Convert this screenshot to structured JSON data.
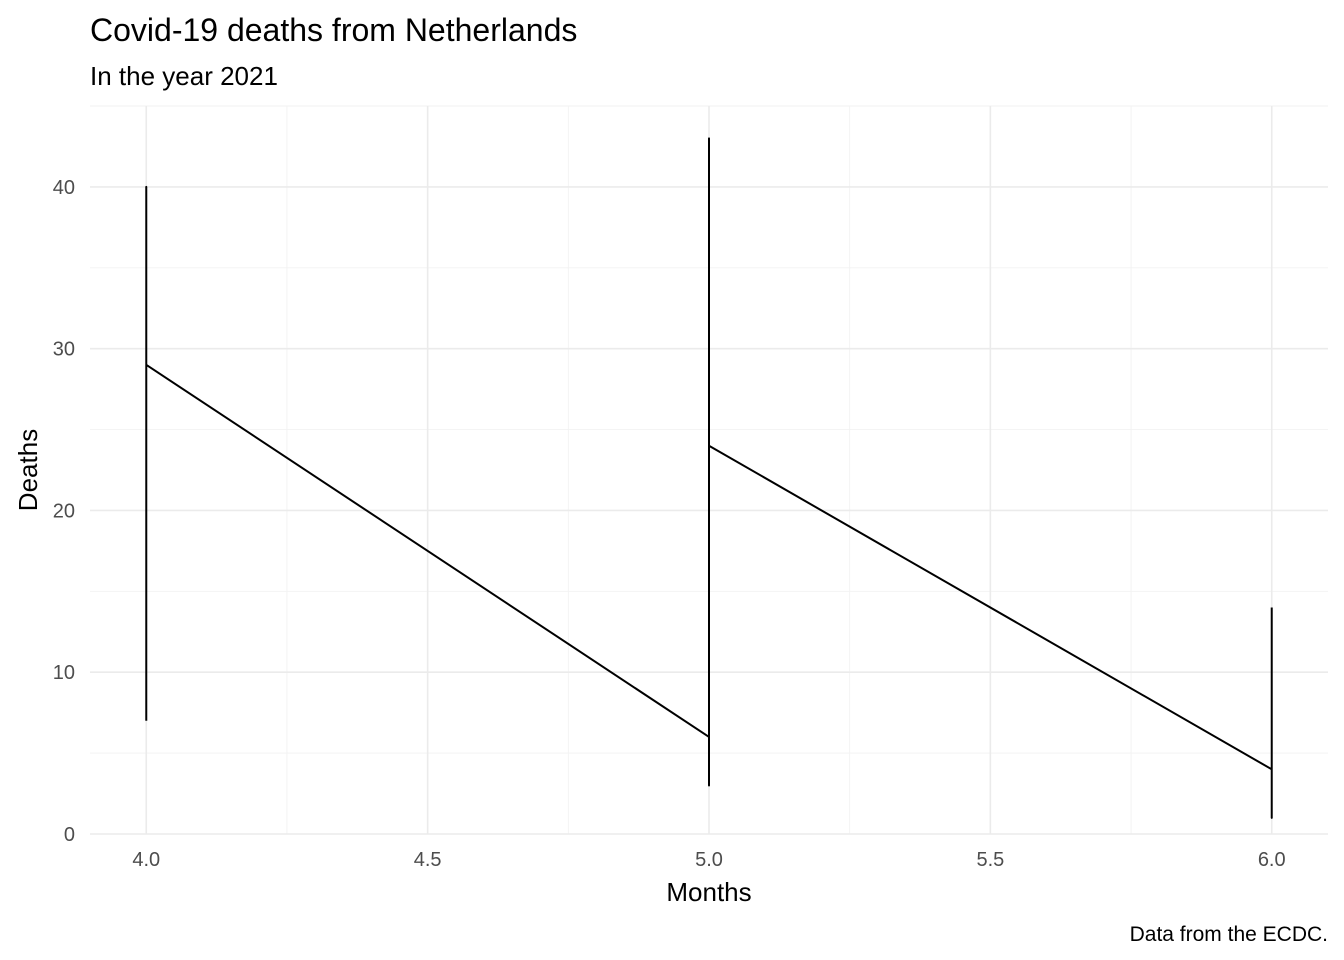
{
  "chart_data": {
    "type": "line",
    "title": "Covid-19 deaths from Netherlands",
    "subtitle": "In the year 2021",
    "xlabel": "Months",
    "ylabel": "Deaths",
    "caption": "Data from the ECDC.",
    "x_ticks": [
      "4.0",
      "4.5",
      "5.0",
      "5.5",
      "6.0"
    ],
    "y_ticks": [
      "0",
      "10",
      "20",
      "30",
      "40"
    ],
    "xlim": [
      3.9,
      6.1
    ],
    "ylim": [
      0,
      45
    ],
    "grid": true,
    "legend": "none",
    "series": [
      {
        "color": "#000000",
        "points": [
          {
            "x": 4,
            "y": 7
          },
          {
            "x": 4,
            "y": 40
          },
          {
            "x": 4,
            "y": 29
          },
          {
            "x": 5,
            "y": 6
          },
          {
            "x": 5,
            "y": 3
          },
          {
            "x": 5,
            "y": 43
          },
          {
            "x": 5,
            "y": 24
          },
          {
            "x": 6,
            "y": 4
          },
          {
            "x": 6,
            "y": 1
          },
          {
            "x": 6,
            "y": 14
          }
        ]
      }
    ]
  }
}
